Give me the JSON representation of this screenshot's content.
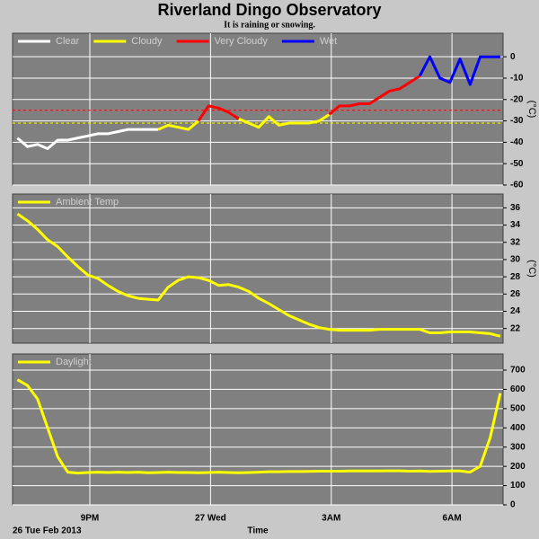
{
  "page": {
    "title": "Riverland Dingo Observatory",
    "subtitle": "It is raining or snowing.",
    "x_label": "Time",
    "date_label": "26 Tue Feb 2013"
  },
  "chart_data": [
    {
      "type": "line",
      "y_label": "(°C)",
      "x": [
        19.2,
        19.45,
        19.7,
        19.95,
        20.2,
        20.45,
        20.7,
        20.95,
        21.2,
        21.45,
        21.7,
        21.95,
        22.2,
        22.45,
        22.7,
        22.95,
        23.2,
        23.45,
        23.7,
        23.95,
        24.2,
        24.45,
        24.7,
        24.95,
        25.2,
        25.45,
        25.7,
        25.95,
        26.2,
        26.45,
        26.7,
        26.95,
        27.2,
        27.45,
        27.7,
        27.95,
        28.2,
        28.45,
        28.7,
        28.95,
        29.2,
        29.45,
        29.7,
        29.95,
        30.2,
        30.45,
        30.7,
        30.95,
        31.2
      ],
      "xlim": [
        19.08,
        31.27
      ],
      "xticks": [
        {
          "value": 21,
          "label": "9PM"
        },
        {
          "value": 24,
          "label": "27 Wed"
        },
        {
          "value": 27,
          "label": "3AM"
        },
        {
          "value": 30,
          "label": "6AM"
        }
      ],
      "ylim": [
        -60,
        11
      ],
      "yticks": [
        -60,
        -50,
        -40,
        -30,
        -20,
        -10,
        0
      ],
      "reference_lines": [
        {
          "value": -25,
          "color": "#ff0000"
        },
        {
          "value": -31,
          "color": "#ffff00"
        }
      ],
      "series": [
        {
          "name": "Clear",
          "color": "#ffffff",
          "values": [
            -38,
            -42,
            -41,
            -43,
            -39,
            -39,
            -38,
            -37,
            -36,
            -36,
            -35,
            -34,
            -34,
            -34,
            -34,
            null,
            null,
            null,
            null,
            null,
            null,
            null,
            null,
            null,
            null,
            null,
            null,
            null,
            null,
            null,
            null,
            null,
            null,
            null,
            null,
            null,
            null,
            null,
            null,
            null,
            null,
            null,
            null,
            null,
            null,
            null,
            null,
            null,
            null
          ]
        },
        {
          "name": "Cloudy",
          "color": "#ffff00",
          "values": [
            null,
            null,
            null,
            null,
            null,
            null,
            null,
            null,
            null,
            null,
            null,
            null,
            null,
            null,
            -34,
            -32,
            -33,
            -34,
            -30,
            null,
            null,
            null,
            -29,
            -31,
            -33,
            -28,
            -32,
            -31,
            -31,
            -31,
            -30,
            -27,
            null,
            null,
            null,
            null,
            null,
            null,
            null,
            null,
            null,
            null,
            null,
            null,
            null,
            null,
            null,
            null,
            null
          ]
        },
        {
          "name": "Very Cloudy",
          "color": "#ff0000",
          "values": [
            null,
            null,
            null,
            null,
            null,
            null,
            null,
            null,
            null,
            null,
            null,
            null,
            null,
            null,
            null,
            null,
            null,
            null,
            -30,
            -23,
            -24,
            -26,
            -29,
            null,
            null,
            null,
            null,
            null,
            null,
            null,
            null,
            -27,
            -23,
            -23,
            -22,
            -22,
            -19,
            -16,
            -15,
            -12,
            -9,
            null,
            -10,
            -12,
            null,
            null,
            null,
            null,
            null
          ]
        },
        {
          "name": "Wet",
          "color": "#0000ff",
          "values": [
            null,
            null,
            null,
            null,
            null,
            null,
            null,
            null,
            null,
            null,
            null,
            null,
            null,
            null,
            null,
            null,
            null,
            null,
            null,
            null,
            null,
            null,
            null,
            null,
            null,
            null,
            null,
            null,
            null,
            null,
            null,
            null,
            null,
            null,
            null,
            null,
            null,
            null,
            null,
            null,
            -9,
            0,
            -10,
            -12,
            -1,
            -13,
            0,
            0,
            0
          ]
        }
      ]
    },
    {
      "type": "line",
      "y_label": "(°C)",
      "x": [
        19.2,
        19.45,
        19.7,
        19.95,
        20.2,
        20.45,
        20.7,
        20.95,
        21.2,
        21.45,
        21.7,
        21.95,
        22.2,
        22.45,
        22.7,
        22.95,
        23.2,
        23.45,
        23.7,
        23.95,
        24.2,
        24.45,
        24.7,
        24.95,
        25.2,
        25.45,
        25.7,
        25.95,
        26.2,
        26.45,
        26.7,
        26.95,
        27.2,
        27.45,
        27.7,
        27.95,
        28.2,
        28.45,
        28.7,
        28.95,
        29.2,
        29.45,
        29.7,
        29.95,
        30.2,
        30.45,
        30.7,
        30.95,
        31.2
      ],
      "xlim": [
        19.08,
        31.27
      ],
      "xticks": [
        {
          "value": 21,
          "label": "9PM"
        },
        {
          "value": 24,
          "label": "27 Wed"
        },
        {
          "value": 27,
          "label": "3AM"
        },
        {
          "value": 30,
          "label": "6AM"
        }
      ],
      "ylim": [
        20.3,
        37.6
      ],
      "yticks": [
        22,
        24,
        26,
        28,
        30,
        32,
        34,
        36
      ],
      "series": [
        {
          "name": "Ambient Temp",
          "color": "#ffff00",
          "values": [
            35.3,
            34.5,
            33.5,
            32.3,
            31.5,
            30.3,
            29.2,
            28.2,
            27.8,
            27.0,
            26.3,
            25.8,
            25.5,
            25.4,
            25.3,
            26.8,
            27.6,
            28.0,
            27.9,
            27.6,
            27.0,
            27.1,
            26.8,
            26.3,
            25.5,
            24.9,
            24.2,
            23.5,
            23.0,
            22.5,
            22.1,
            21.9,
            21.8,
            21.8,
            21.8,
            21.8,
            21.9,
            21.9,
            21.9,
            21.9,
            21.9,
            21.5,
            21.5,
            21.6,
            21.6,
            21.6,
            21.5,
            21.4,
            21.1
          ]
        }
      ]
    },
    {
      "type": "line",
      "x": [
        19.2,
        19.45,
        19.7,
        19.95,
        20.2,
        20.45,
        20.7,
        20.95,
        21.2,
        21.45,
        21.7,
        21.95,
        22.2,
        22.45,
        22.7,
        22.95,
        23.2,
        23.45,
        23.7,
        23.95,
        24.2,
        24.45,
        24.7,
        24.95,
        25.2,
        25.45,
        25.7,
        25.95,
        26.2,
        26.45,
        26.7,
        26.95,
        27.2,
        27.45,
        27.7,
        27.95,
        28.2,
        28.45,
        28.7,
        28.95,
        29.2,
        29.45,
        29.7,
        29.95,
        30.2,
        30.45,
        30.7,
        30.95,
        31.2
      ],
      "xlim": [
        19.08,
        31.27
      ],
      "xticks": [
        {
          "value": 21,
          "label": "9PM"
        },
        {
          "value": 24,
          "label": "27 Wed"
        },
        {
          "value": 27,
          "label": "3AM"
        },
        {
          "value": 30,
          "label": "6AM"
        }
      ],
      "ylim": [
        0,
        784
      ],
      "yticks": [
        0,
        100,
        200,
        300,
        400,
        500,
        600,
        700
      ],
      "series": [
        {
          "name": "Daylight",
          "color": "#ffff00",
          "values": [
            650,
            620,
            550,
            400,
            250,
            170,
            165,
            168,
            170,
            168,
            170,
            168,
            170,
            167,
            168,
            170,
            168,
            168,
            167,
            168,
            170,
            168,
            167,
            168,
            170,
            172,
            172,
            173,
            173,
            174,
            175,
            175,
            175,
            176,
            176,
            176,
            176,
            177,
            177,
            175,
            176,
            174,
            175,
            176,
            176,
            170,
            200,
            350,
            580
          ]
        }
      ]
    }
  ]
}
